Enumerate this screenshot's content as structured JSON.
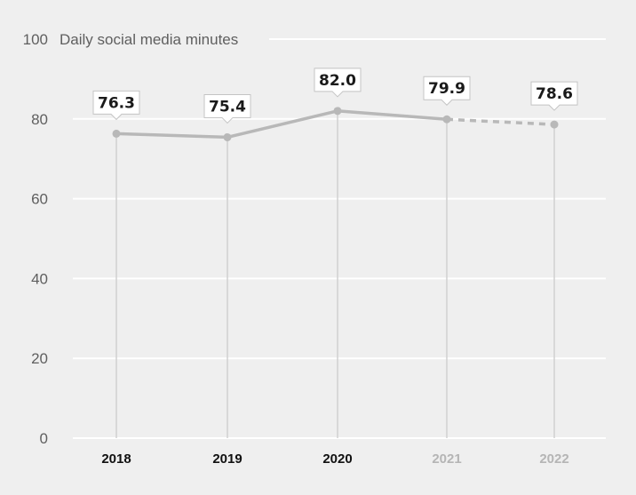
{
  "chart_data": {
    "type": "line",
    "title": "",
    "xlabel": "",
    "ylabel": "Daily social media minutes",
    "ylim": [
      0,
      100
    ],
    "yticks": [
      0,
      20,
      40,
      60,
      80,
      100
    ],
    "grid": true,
    "categories": [
      "2018",
      "2019",
      "2020",
      "2021",
      "2022"
    ],
    "values": [
      76.3,
      75.4,
      82.0,
      79.9,
      78.6
    ],
    "value_labels": [
      "76.3",
      "75.4",
      "82.0",
      "79.9",
      "78.6"
    ],
    "forecast_from_index": 3,
    "colors": {
      "line": "#b8b8b8",
      "grid": "#ffffff",
      "axis_text": "#5f5f5f",
      "actual_year": "#111111",
      "forecast_year": "#b5b5b5",
      "label_border": "#c4c4c4",
      "drop_line": "#d0d0d0"
    }
  }
}
